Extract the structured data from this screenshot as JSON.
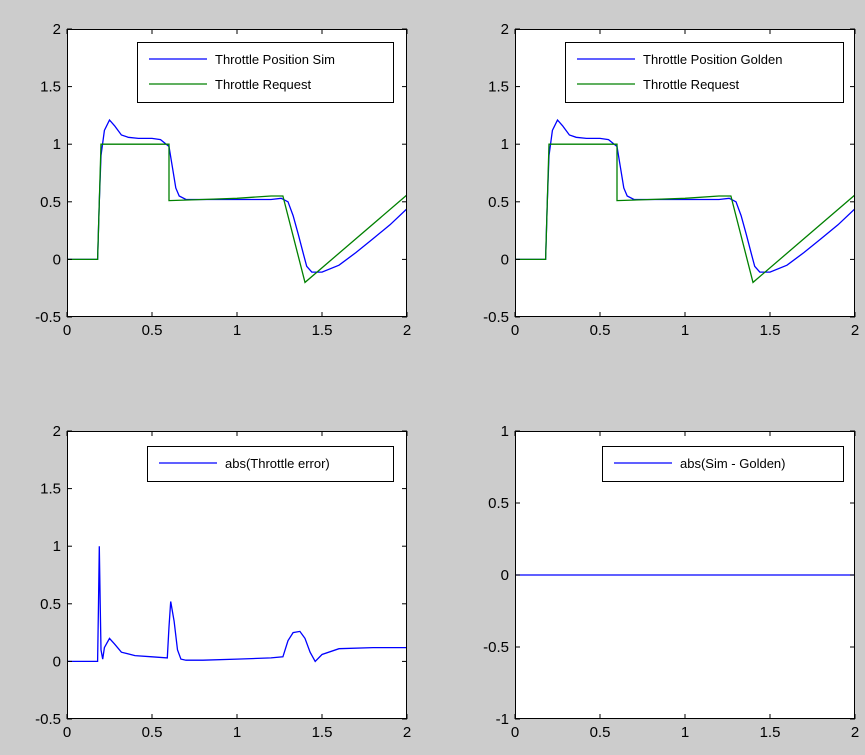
{
  "colors": {
    "figure_bg": "#cccccc",
    "axes_bg": "#ffffff",
    "blue": "#0000ff",
    "green": "#008000"
  },
  "chart_data": [
    {
      "type": "line",
      "xlim": [
        0,
        2
      ],
      "ylim": [
        -0.5,
        2
      ],
      "xticks": [
        "0",
        "0.5",
        "1",
        "1.5",
        "2"
      ],
      "yticks": [
        "-0.5",
        "0",
        "0.5",
        "1",
        "1.5",
        "2"
      ],
      "legend_position": "top-right",
      "grid": false,
      "series": [
        {
          "name": "Throttle Position Sim",
          "color": "#0000ff",
          "x": [
            0,
            0.18,
            0.19,
            0.2,
            0.22,
            0.25,
            0.28,
            0.32,
            0.36,
            0.42,
            0.5,
            0.55,
            0.6,
            0.62,
            0.64,
            0.66,
            0.7,
            0.8,
            1.0,
            1.2,
            1.26,
            1.3,
            1.33,
            1.36,
            1.39,
            1.41,
            1.44,
            1.5,
            1.6,
            1.7,
            1.8,
            1.9,
            2.0
          ],
          "y": [
            0,
            0,
            0.5,
            0.9,
            1.12,
            1.21,
            1.16,
            1.08,
            1.06,
            1.05,
            1.05,
            1.04,
            0.98,
            0.8,
            0.62,
            0.55,
            0.52,
            0.52,
            0.52,
            0.52,
            0.53,
            0.5,
            0.38,
            0.22,
            0.05,
            -0.06,
            -0.11,
            -0.11,
            -0.05,
            0.06,
            0.18,
            0.3,
            0.44
          ]
        },
        {
          "name": "Throttle Request",
          "color": "#008000",
          "x": [
            0,
            0.18,
            0.2,
            0.6,
            0.6,
            0.8,
            1.0,
            1.2,
            1.27,
            1.4,
            2.0
          ],
          "y": [
            0,
            0,
            1,
            1,
            0.51,
            0.52,
            0.53,
            0.55,
            0.55,
            -0.2,
            0.56
          ]
        }
      ]
    },
    {
      "type": "line",
      "xlim": [
        0,
        2
      ],
      "ylim": [
        -0.5,
        2
      ],
      "xticks": [
        "0",
        "0.5",
        "1",
        "1.5",
        "2"
      ],
      "yticks": [
        "-0.5",
        "0",
        "0.5",
        "1",
        "1.5",
        "2"
      ],
      "legend_position": "top-right",
      "grid": false,
      "series": [
        {
          "name": "Throttle Position Golden",
          "color": "#0000ff",
          "x": [
            0,
            0.18,
            0.19,
            0.2,
            0.22,
            0.25,
            0.28,
            0.32,
            0.36,
            0.42,
            0.5,
            0.55,
            0.6,
            0.62,
            0.64,
            0.66,
            0.7,
            0.8,
            1.0,
            1.2,
            1.26,
            1.3,
            1.33,
            1.36,
            1.39,
            1.41,
            1.44,
            1.5,
            1.6,
            1.7,
            1.8,
            1.9,
            2.0
          ],
          "y": [
            0,
            0,
            0.5,
            0.9,
            1.12,
            1.21,
            1.16,
            1.08,
            1.06,
            1.05,
            1.05,
            1.04,
            0.98,
            0.8,
            0.62,
            0.55,
            0.52,
            0.52,
            0.52,
            0.52,
            0.53,
            0.5,
            0.38,
            0.22,
            0.05,
            -0.06,
            -0.11,
            -0.11,
            -0.05,
            0.06,
            0.18,
            0.3,
            0.44
          ]
        },
        {
          "name": "Throttle Request",
          "color": "#008000",
          "x": [
            0,
            0.18,
            0.2,
            0.6,
            0.6,
            0.8,
            1.0,
            1.2,
            1.27,
            1.4,
            2.0
          ],
          "y": [
            0,
            0,
            1,
            1,
            0.51,
            0.52,
            0.53,
            0.55,
            0.55,
            -0.2,
            0.56
          ]
        }
      ]
    },
    {
      "type": "line",
      "xlim": [
        0,
        2
      ],
      "ylim": [
        -0.5,
        2
      ],
      "xticks": [
        "0",
        "0.5",
        "1",
        "1.5",
        "2"
      ],
      "yticks": [
        "-0.5",
        "0",
        "0.5",
        "1",
        "1.5",
        "2"
      ],
      "legend_position": "top-right",
      "grid": false,
      "series": [
        {
          "name": "abs(Throttle error)",
          "color": "#0000ff",
          "x": [
            0,
            0.18,
            0.185,
            0.19,
            0.195,
            0.2,
            0.21,
            0.22,
            0.25,
            0.28,
            0.32,
            0.4,
            0.5,
            0.59,
            0.6,
            0.61,
            0.63,
            0.65,
            0.67,
            0.7,
            0.8,
            1.0,
            1.2,
            1.27,
            1.3,
            1.33,
            1.37,
            1.4,
            1.43,
            1.46,
            1.5,
            1.6,
            1.8,
            2.0
          ],
          "y": [
            0,
            0,
            0.5,
            1.0,
            0.5,
            0.1,
            0.02,
            0.12,
            0.2,
            0.15,
            0.08,
            0.05,
            0.04,
            0.03,
            0.3,
            0.52,
            0.35,
            0.1,
            0.02,
            0.01,
            0.01,
            0.02,
            0.03,
            0.04,
            0.18,
            0.25,
            0.26,
            0.2,
            0.08,
            0.0,
            0.06,
            0.11,
            0.12,
            0.12
          ]
        }
      ]
    },
    {
      "type": "line",
      "xlim": [
        0,
        2
      ],
      "ylim": [
        -1,
        1
      ],
      "xticks": [
        "0",
        "0.5",
        "1",
        "1.5",
        "2"
      ],
      "yticks": [
        "-1",
        "-0.5",
        "0",
        "0.5",
        "1"
      ],
      "legend_position": "top-right",
      "grid": false,
      "series": [
        {
          "name": "abs(Sim - Golden)",
          "color": "#0000ff",
          "x": [
            0,
            2
          ],
          "y": [
            0,
            0
          ]
        }
      ]
    }
  ]
}
